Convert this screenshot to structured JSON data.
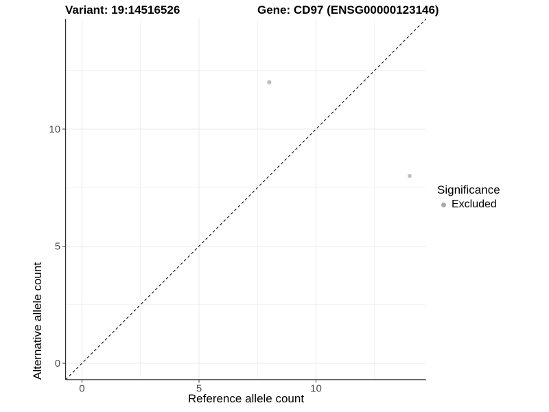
{
  "titles": {
    "variant": "Variant: 19:14516526",
    "gene": "Gene: CD97 (ENSG00000123146)"
  },
  "axes": {
    "x_label": "Reference allele count",
    "y_label": "Alternative allele count"
  },
  "legend": {
    "title": "Significance",
    "items": [
      {
        "label": "Excluded",
        "color": "#a8a8a8"
      }
    ]
  },
  "colors": {
    "background": "#ffffff",
    "grid_major": "#e9e9e9",
    "grid_minor": "#f2f2f2",
    "axis_line": "#2f2f2f",
    "tick_mark": "#333333",
    "tick_label": "#4d4d4d",
    "identity_line": "#1c1c1c",
    "point": "#c0c0c0"
  },
  "chart_data": {
    "type": "scatter",
    "title": "Variant: 19:14516526 / Gene: CD97 (ENSG00000123146)",
    "xlabel": "Reference allele count",
    "ylabel": "Alternative allele count",
    "xlim": [
      -0.7,
      14.7
    ],
    "ylim": [
      -0.7,
      14.7
    ],
    "x_ticks": [
      0,
      5,
      10
    ],
    "y_ticks": [
      0,
      5,
      10
    ],
    "x_minor_ticks": [
      2.5,
      7.5,
      12.5
    ],
    "y_minor_ticks": [
      2.5,
      7.5,
      12.5
    ],
    "grid": "major+minor",
    "legend_position": "right",
    "series_name": "Significance",
    "points": [
      {
        "x": 8,
        "y": 12,
        "series": "Excluded",
        "r": 3.2
      },
      {
        "x": 14,
        "y": 8,
        "series": "Excluded",
        "r": 2.9
      }
    ],
    "identity_line": {
      "slope": 1,
      "intercept": 0,
      "style": "dashed"
    }
  }
}
